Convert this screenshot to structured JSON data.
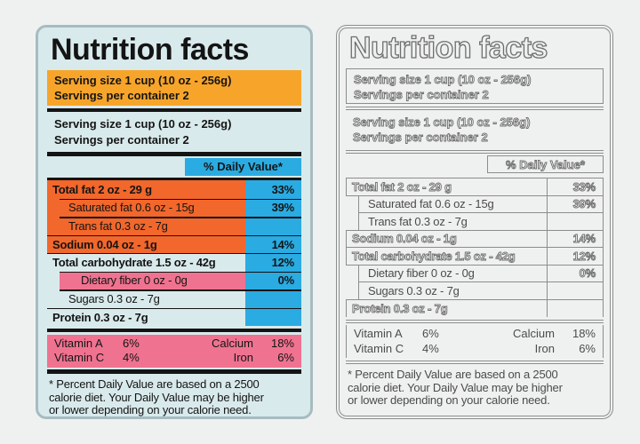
{
  "label": {
    "title": "Nutrition facts",
    "serving_box": {
      "line1": "Serving size 1 cup (10 oz - 256g)",
      "line2": "Servings per container 2"
    },
    "serving_repeat": {
      "line1": "Serving size 1 cup (10 oz - 256g)",
      "line2": "Servings per container 2"
    },
    "daily_value_header": "% Daily Value*",
    "rows": [
      {
        "name": "Total fat 2 oz - 29 g",
        "value": "33%"
      },
      {
        "name": "Saturated fat 0.6 oz - 15g",
        "value": "39%"
      },
      {
        "name": "Trans fat 0.3 oz - 7g",
        "value": ""
      },
      {
        "name": "Sodium 0.04 oz - 1g",
        "value": "14%"
      },
      {
        "name": "Total carbohydrate 1.5 oz - 42g",
        "value": "12%"
      },
      {
        "name": "Dietary fiber 0 oz - 0g",
        "value": "0%"
      },
      {
        "name": "Sugars 0.3 oz - 7g",
        "value": ""
      },
      {
        "name": "Protein 0.3 oz - 7g",
        "value": ""
      }
    ],
    "vitamins": [
      {
        "left_name": "Vitamin A",
        "left_value": "6%",
        "right_name": "Calcium",
        "right_value": "18%"
      },
      {
        "left_name": "Vitamin C",
        "left_value": "4%",
        "right_name": "Iron",
        "right_value": "6%"
      }
    ],
    "footnote_lines": [
      "* Percent Daily Value are based on a 2500",
      "calorie diet. Your Daily Value may be higher",
      "or lower depending on your calorie need."
    ]
  },
  "colors": {
    "page_bg": "#eff1f0",
    "label_bg": "#d9eaec",
    "label_border": "#a6bcc0",
    "amber": "#f7a52a",
    "orange": "#f2672b",
    "cyan": "#2aabe2",
    "pink": "#ef7390",
    "ink": "#141414",
    "line": "#8a8e8d",
    "outline_text": "#4b4b4b",
    "outline_stroke": "#6e6e6e"
  }
}
